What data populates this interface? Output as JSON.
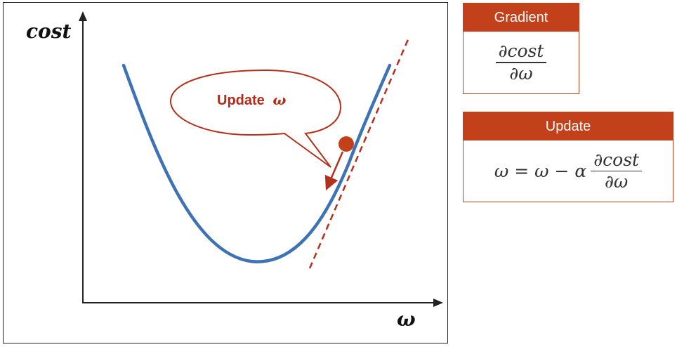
{
  "diagram": {
    "y_axis_label": "cost",
    "x_axis_label": "ω",
    "callout_text": "Update",
    "callout_symbol": "ω"
  },
  "gradient_box": {
    "header": "Gradient",
    "numerator": "∂cost",
    "denominator": "∂ω"
  },
  "update_box": {
    "header": "Update",
    "lhs": "ω = ω − α",
    "numerator": "∂cost",
    "denominator": "∂ω"
  },
  "colors": {
    "curve": "#3d72b4",
    "accent": "#c2401a",
    "callout_text": "#b52a1a"
  }
}
